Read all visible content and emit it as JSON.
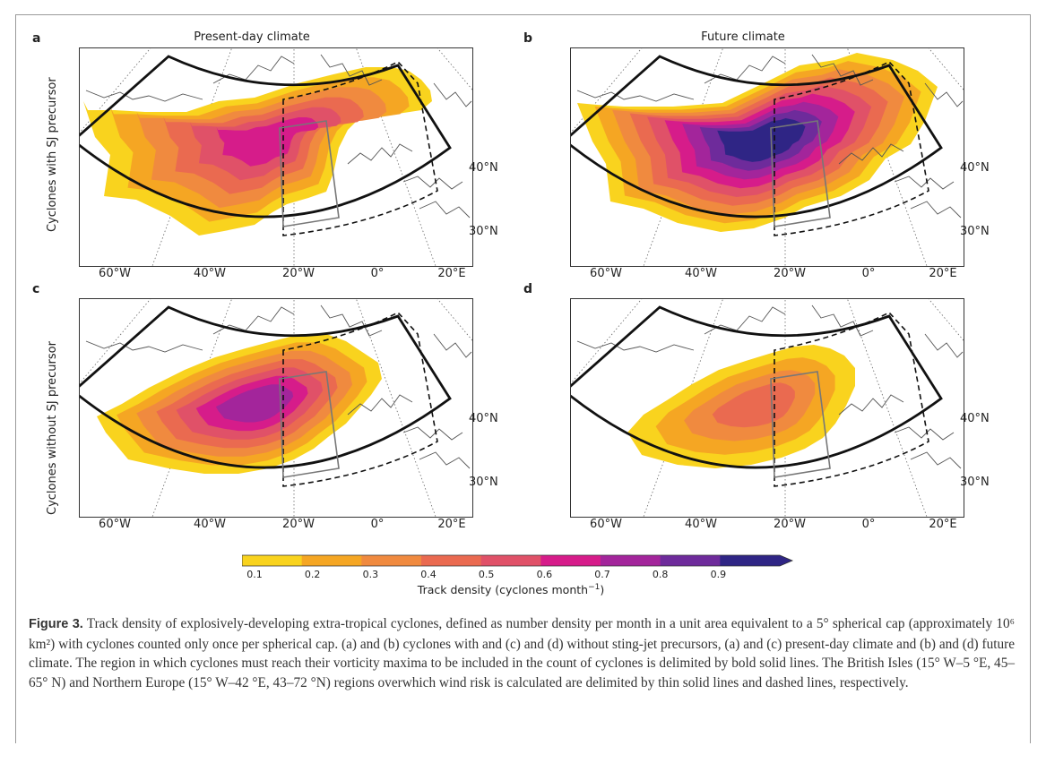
{
  "figure": {
    "panels": [
      {
        "letter": "a",
        "title": "Present-day climate"
      },
      {
        "letter": "b",
        "title": "Future climate"
      },
      {
        "letter": "c",
        "title": ""
      },
      {
        "letter": "d",
        "title": ""
      }
    ],
    "row_labels": [
      "Cyclones with SJ precursor",
      "Cyclones without SJ precursor"
    ],
    "lat_labels": [
      "40°N",
      "30°N"
    ],
    "lon_labels": [
      "60°W",
      "40°W",
      "20°W",
      "0°",
      "20°E"
    ]
  },
  "colorbar": {
    "ticks": [
      "0.1",
      "0.2",
      "0.3",
      "0.4",
      "0.5",
      "0.6",
      "0.7",
      "0.8",
      "0.9"
    ],
    "colors": [
      "#f9d31e",
      "#f5a623",
      "#f08a3f",
      "#ea6a50",
      "#e05168",
      "#d61c8a",
      "#a3259b",
      "#6e2b9b",
      "#2f2585"
    ],
    "label_main": "Track density (cyclones month",
    "label_sup": "−1",
    "label_end": ")"
  },
  "caption": {
    "label": "Figure 3.",
    "text": "Track density of explosively-developing extra-tropical cyclones, defined as number density per month in a unit area equivalent to a 5° spherical cap (approximately 10⁶ km²) with cyclones counted only once per spherical cap. (a) and (b) cyclones with and (c) and (d) without sting-jet precursors, (a) and (c) present-day climate and (b) and (d) future climate. The region in which cyclones must reach their vorticity maxima to be included in the count of cyclones is delimited by bold solid lines. The British Isles (15° W–5 °E, 45–65° N) and Northern Europe (15° W–42 °E, 43–72 °N) regions overwhich wind risk is calculated are delimited by thin solid lines and dashed lines, respectively."
  }
}
